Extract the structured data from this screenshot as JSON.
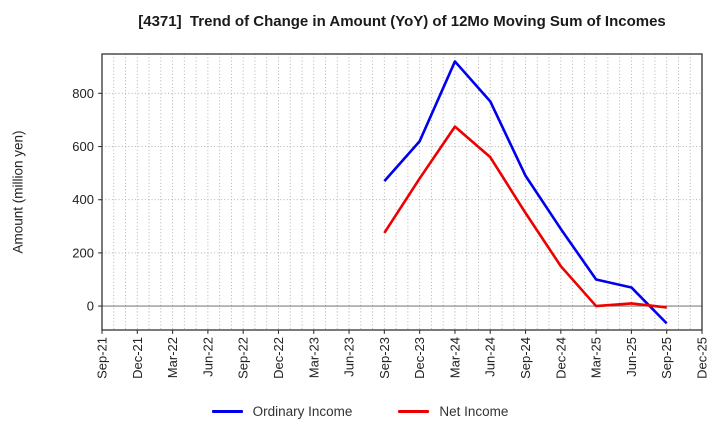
{
  "chart_data": {
    "type": "line",
    "title": "[4371]  Trend of Change in Amount (YoY) of 12Mo Moving Sum of Incomes",
    "xlabel": "",
    "ylabel": "Amount (million yen)",
    "x_tick_labels": [
      "Sep-21",
      "Dec-21",
      "Mar-22",
      "Jun-22",
      "Sep-22",
      "Dec-22",
      "Mar-23",
      "Jun-23",
      "Sep-23",
      "Dec-23",
      "Mar-24",
      "Jun-24",
      "Sep-24",
      "Dec-24",
      "Mar-25",
      "Jun-25",
      "Sep-25",
      "Dec-25"
    ],
    "y_ticks": [
      0,
      200,
      400,
      600,
      800
    ],
    "ylim": [
      -90,
      948
    ],
    "months_span": 51,
    "grid": "dotted, monthly vertical + horizontal at y ticks",
    "zero_line": true,
    "series": [
      {
        "name": "Ordinary Income",
        "color": "#0000ee",
        "start": "Sep-23",
        "x": [
          "Sep-23",
          "Dec-23",
          "Mar-24",
          "Jun-24",
          "Sep-24",
          "Dec-24",
          "Mar-25",
          "Jun-25",
          "Sep-25"
        ],
        "values": [
          470,
          620,
          920,
          770,
          490,
          290,
          100,
          70,
          -65
        ]
      },
      {
        "name": "Net Income",
        "color": "#ee0000",
        "start": "Sep-23",
        "x": [
          "Sep-23",
          "Dec-23",
          "Mar-24",
          "Jun-24",
          "Sep-24",
          "Dec-24",
          "Mar-25",
          "Jun-25",
          "Sep-25"
        ],
        "values": [
          275,
          480,
          675,
          560,
          350,
          150,
          0,
          10,
          -5
        ]
      }
    ],
    "legend_position": "bottom-center"
  },
  "style": {
    "grid_color": "#aaaaaa",
    "zero_line_color": "#808080",
    "spine_color": "#333333",
    "tick_label_color": "#222222"
  }
}
